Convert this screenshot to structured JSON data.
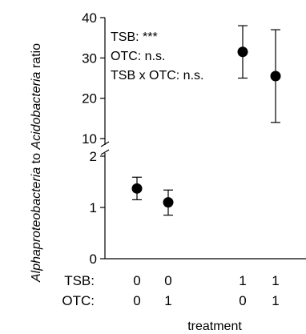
{
  "chart_data": {
    "type": "scatter",
    "ylabel_parts": [
      {
        "text": "Alphaproteobacteria",
        "italic": true
      },
      {
        "text": " to ",
        "italic": false
      },
      {
        "text": "Acidobacteria",
        "italic": true
      },
      {
        "text": " ratio",
        "italic": false
      }
    ],
    "xlabel": "treatment",
    "y_axis_break": {
      "lower_range": [
        0,
        2
      ],
      "upper_range": [
        10,
        40
      ]
    },
    "y_ticks_lower": [
      0,
      1,
      2
    ],
    "y_ticks_upper": [
      10,
      20,
      30,
      40
    ],
    "factor_rows": [
      {
        "label": "TSB:",
        "values": [
          "0",
          "0",
          "1",
          "1"
        ]
      },
      {
        "label": "OTC:",
        "values": [
          "0",
          "1",
          "0",
          "1"
        ]
      }
    ],
    "points": [
      {
        "tsb": "0",
        "otc": "0",
        "y": 1.37,
        "err_low": 1.15,
        "err_high": 1.59
      },
      {
        "tsb": "0",
        "otc": "1",
        "y": 1.1,
        "err_low": 0.85,
        "err_high": 1.34
      },
      {
        "tsb": "1",
        "otc": "0",
        "y": 31.5,
        "err_low": 25.0,
        "err_high": 38.0
      },
      {
        "tsb": "1",
        "otc": "1",
        "y": 25.5,
        "err_low": 14.0,
        "err_high": 37.0
      }
    ],
    "stats": [
      "TSB: ***",
      "OTC: n.s.",
      "TSB x OTC: n.s."
    ],
    "marker_color": "#000000",
    "grid": false
  }
}
